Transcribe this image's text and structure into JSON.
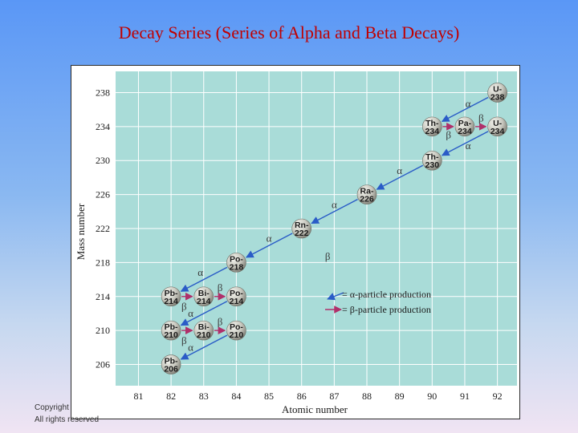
{
  "slide": {
    "title": "Decay Series (Series of Alpha and Beta Decays)",
    "copyright_line1": "Copyright",
    "copyright_line2": "All rights reserved"
  },
  "colors": {
    "plot_bg": "#a9dcd8",
    "grid": "#ffffff",
    "alpha_arrow": "#2a5cc7",
    "beta_arrow": "#b0306a",
    "sphere_light": "#f2f2ec",
    "sphere_dark": "#7d7d74"
  },
  "chart_data": {
    "type": "scatter",
    "title": "",
    "xlabel": "Atomic number",
    "ylabel": "Mass number",
    "xlim": [
      80.3,
      92.6
    ],
    "ylim": [
      203.5,
      240.5
    ],
    "x_ticks": [
      "81",
      "82",
      "83",
      "84",
      "85",
      "86",
      "87",
      "88",
      "89",
      "90",
      "91",
      "92"
    ],
    "y_ticks": [
      "238",
      "234",
      "230",
      "226",
      "222",
      "218",
      "214",
      "210",
      "206"
    ],
    "nuclides": [
      {
        "id": "u238",
        "label": "U-",
        "mass": "238",
        "z": 92,
        "a": 238
      },
      {
        "id": "th234",
        "label": "Th-",
        "mass": "234",
        "z": 90,
        "a": 234
      },
      {
        "id": "pa234",
        "label": "Pa-",
        "mass": "234",
        "z": 91,
        "a": 234
      },
      {
        "id": "u234",
        "label": "U-",
        "mass": "234",
        "z": 92,
        "a": 234
      },
      {
        "id": "th230",
        "label": "Th-",
        "mass": "230",
        "z": 90,
        "a": 230
      },
      {
        "id": "ra226",
        "label": "Ra-",
        "mass": "226",
        "z": 88,
        "a": 226
      },
      {
        "id": "rn222",
        "label": "Rn-",
        "mass": "222",
        "z": 86,
        "a": 222
      },
      {
        "id": "po218",
        "label": "Po-",
        "mass": "218",
        "z": 84,
        "a": 218
      },
      {
        "id": "pb214",
        "label": "Pb-",
        "mass": "214",
        "z": 82,
        "a": 214
      },
      {
        "id": "bi214",
        "label": "Bi-",
        "mass": "214",
        "z": 83,
        "a": 214
      },
      {
        "id": "po214",
        "label": "Po-",
        "mass": "214",
        "z": 84,
        "a": 214
      },
      {
        "id": "pb210",
        "label": "Pb-",
        "mass": "210",
        "z": 82,
        "a": 210
      },
      {
        "id": "bi210",
        "label": "Bi-",
        "mass": "210",
        "z": 83,
        "a": 210
      },
      {
        "id": "po210",
        "label": "Po-",
        "mass": "210",
        "z": 84,
        "a": 210
      },
      {
        "id": "pb206",
        "label": "Pb-",
        "mass": "206",
        "z": 82,
        "a": 206
      }
    ],
    "decays": [
      {
        "type": "alpha",
        "from": "u238",
        "to": "th234"
      },
      {
        "type": "beta",
        "from": "th234",
        "to": "pa234"
      },
      {
        "type": "beta",
        "from": "pa234",
        "to": "u234"
      },
      {
        "type": "alpha",
        "from": "u234",
        "to": "th230"
      },
      {
        "type": "alpha",
        "from": "th230",
        "to": "ra226"
      },
      {
        "type": "alpha",
        "from": "ra226",
        "to": "rn222"
      },
      {
        "type": "alpha",
        "from": "rn222",
        "to": "po218"
      },
      {
        "type": "alpha",
        "from": "po218",
        "to": "pb214"
      },
      {
        "type": "beta",
        "from": "pb214",
        "to": "bi214"
      },
      {
        "type": "beta",
        "from": "bi214",
        "to": "po214"
      },
      {
        "type": "alpha",
        "from": "po214",
        "to": "pb210"
      },
      {
        "type": "beta",
        "from": "pb210",
        "to": "bi210"
      },
      {
        "type": "beta",
        "from": "bi210",
        "to": "po210"
      },
      {
        "type": "alpha",
        "from": "po210",
        "to": "pb206"
      }
    ],
    "annotations": [
      {
        "text": "α",
        "z": 91.1,
        "a": 236.7
      },
      {
        "text": "β",
        "z": 90.5,
        "a": 233.0
      },
      {
        "text": "β",
        "z": 91.5,
        "a": 235.0
      },
      {
        "text": "α",
        "z": 91.1,
        "a": 231.7
      },
      {
        "text": "α",
        "z": 89.0,
        "a": 228.8
      },
      {
        "text": "α",
        "z": 87.0,
        "a": 224.8
      },
      {
        "text": "α",
        "z": 85.0,
        "a": 220.8
      },
      {
        "text": "β",
        "z": 86.8,
        "a": 218.7
      },
      {
        "text": "α",
        "z": 82.9,
        "a": 216.8
      },
      {
        "text": "β",
        "z": 82.4,
        "a": 212.8
      },
      {
        "text": "β",
        "z": 83.5,
        "a": 215.0
      },
      {
        "text": "α",
        "z": 82.6,
        "a": 212.0
      },
      {
        "text": "β",
        "z": 82.4,
        "a": 208.8
      },
      {
        "text": "β",
        "z": 83.5,
        "a": 211.0
      },
      {
        "text": "α",
        "z": 82.6,
        "a": 208.0
      }
    ],
    "legend": {
      "alpha": "= α-particle production",
      "beta": "= β-particle production"
    }
  }
}
